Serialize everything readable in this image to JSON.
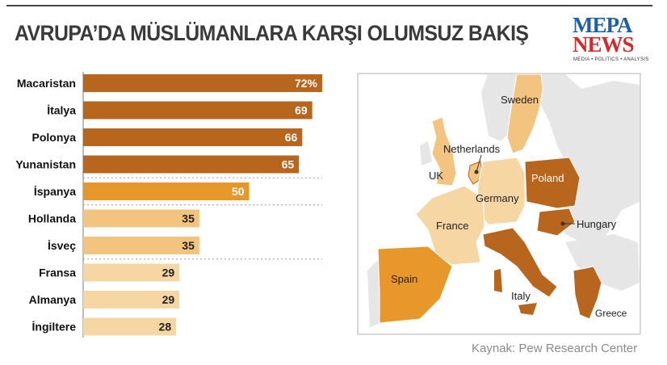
{
  "title": "AVRUPA’DA MÜSLÜMANLARA KARŞI OLUMSUZ BAKIŞ",
  "logo": {
    "line1": "MEPA",
    "line2": "NEWS",
    "tagline": "MEDIA • POLITICS • ANALYSIS"
  },
  "source": "Kaynak: Pew Research Center",
  "colors": {
    "dark": "#b8651e",
    "mid": "#e8972a",
    "light": "#f2c47f",
    "lighter": "#f6d7a4"
  },
  "chart_data": {
    "type": "bar",
    "orientation": "horizontal",
    "categories": [
      "Macaristan",
      "İtalya",
      "Polonya",
      "Yunanistan",
      "İspanya",
      "Hollanda",
      "İsveç",
      "Fransa",
      "Almanya",
      "İngiltere"
    ],
    "values": [
      72,
      69,
      66,
      65,
      50,
      35,
      35,
      29,
      29,
      28
    ],
    "value_labels": [
      "72%",
      "69",
      "66",
      "65",
      "50",
      "35",
      "35",
      "29",
      "29",
      "28"
    ],
    "tiers": [
      "dark",
      "dark",
      "dark",
      "dark",
      "mid",
      "light",
      "light",
      "lighter",
      "lighter",
      "lighter"
    ],
    "xlim": [
      0,
      72
    ]
  },
  "map": {
    "labels": [
      "Sweden",
      "Netherlands",
      "UK",
      "Poland",
      "Germany",
      "France",
      "Hungary",
      "Spain",
      "Italy",
      "Greece"
    ]
  }
}
